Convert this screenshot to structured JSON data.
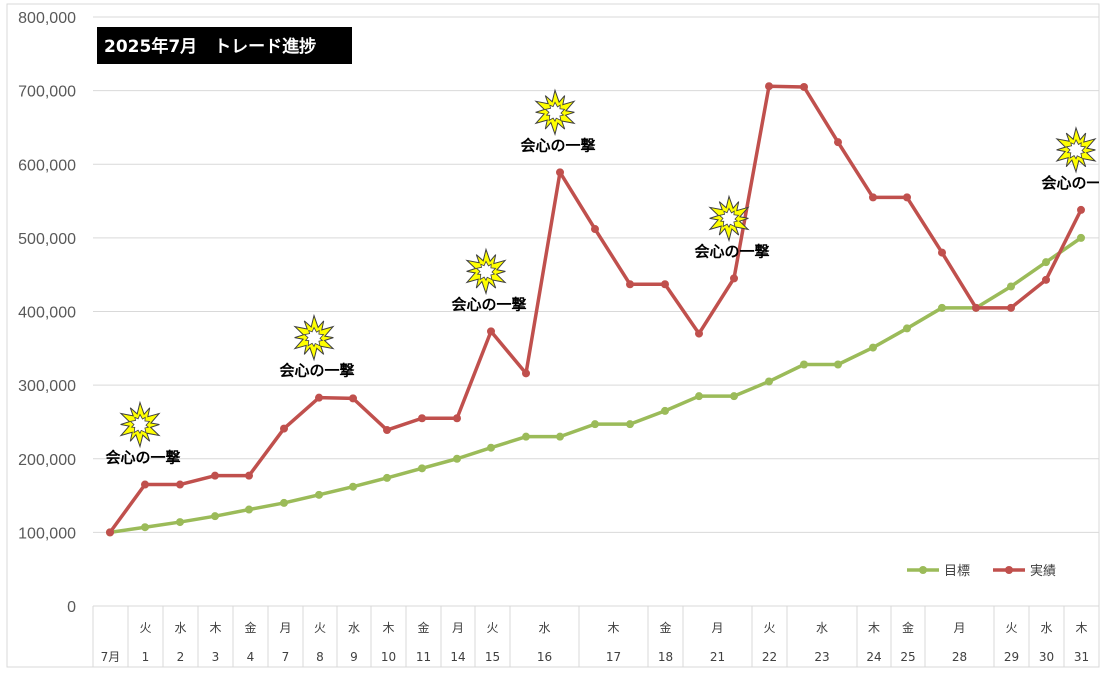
{
  "chart_data": {
    "type": "line",
    "title": "2025年7月　トレード進捗",
    "ylim": [
      0,
      800000
    ],
    "y_ticks": [
      "0",
      "100,000",
      "200,000",
      "300,000",
      "400,000",
      "500,000",
      "600,000",
      "700,000",
      "800,000"
    ],
    "grid": true,
    "legend_position": "bottom-right",
    "categories": [
      {
        "weekday": "",
        "day": "7月"
      },
      {
        "weekday": "火",
        "day": "1"
      },
      {
        "weekday": "水",
        "day": "2"
      },
      {
        "weekday": "木",
        "day": "3"
      },
      {
        "weekday": "金",
        "day": "4"
      },
      {
        "weekday": "月",
        "day": "7"
      },
      {
        "weekday": "火",
        "day": "8"
      },
      {
        "weekday": "水",
        "day": "9"
      },
      {
        "weekday": "木",
        "day": "10"
      },
      {
        "weekday": "金",
        "day": "11"
      },
      {
        "weekday": "月",
        "day": "14"
      },
      {
        "weekday": "火",
        "day": "15"
      },
      {
        "weekday": "水",
        "day": "16"
      },
      {
        "weekday": "木",
        "day": "17"
      },
      {
        "weekday": "金",
        "day": "18"
      },
      {
        "weekday": "月",
        "day": "21"
      },
      {
        "weekday": "火",
        "day": "22"
      },
      {
        "weekday": "水",
        "day": "23"
      },
      {
        "weekday": "木",
        "day": "24"
      },
      {
        "weekday": "金",
        "day": "25"
      },
      {
        "weekday": "月",
        "day": "28"
      },
      {
        "weekday": "火",
        "day": "29"
      },
      {
        "weekday": "水",
        "day": "30"
      },
      {
        "weekday": "木",
        "day": "31"
      }
    ],
    "series": [
      {
        "name": "目標",
        "color": "#9BBB59",
        "x": [
          "7月",
          "1",
          "2",
          "3",
          "4",
          "7",
          "8",
          "9",
          "10",
          "11",
          "14",
          "15",
          "16",
          "16+",
          "17",
          "17+",
          "18",
          "21",
          "21+",
          "22",
          "23",
          "23+",
          "24",
          "25",
          "28",
          "28+",
          "29",
          "30",
          "31"
        ],
        "values": [
          100000,
          107000,
          114000,
          122000,
          131000,
          140000,
          151000,
          162000,
          174000,
          187000,
          200000,
          215000,
          230000,
          230000,
          247000,
          247000,
          265000,
          285000,
          285000,
          305000,
          328000,
          328000,
          351000,
          377000,
          405000,
          405000,
          434000,
          467000,
          500000
        ]
      },
      {
        "name": "実績",
        "color": "#C0504D",
        "x": [
          "7月",
          "1",
          "2",
          "3",
          "4",
          "7",
          "8",
          "9",
          "10",
          "11",
          "14",
          "15",
          "16",
          "16+",
          "17",
          "17+",
          "18",
          "21",
          "21+",
          "22",
          "23",
          "23+",
          "24",
          "25",
          "28",
          "28+",
          "29",
          "30",
          "31"
        ],
        "values": [
          100000,
          165000,
          165000,
          177000,
          177000,
          241000,
          283000,
          282000,
          239000,
          255000,
          255000,
          373000,
          316000,
          589000,
          512000,
          437000,
          437000,
          370000,
          445000,
          706000,
          705000,
          630000,
          555000,
          555000,
          480000,
          405000,
          405000,
          443000,
          538000
        ]
      }
    ],
    "annotations": [
      {
        "text": "会心の一撃",
        "at": "1"
      },
      {
        "text": "会心の一撃",
        "at": "8"
      },
      {
        "text": "会心の一撃",
        "at": "15"
      },
      {
        "text": "会心の一撃",
        "at": "16+"
      },
      {
        "text": "会心の一撃",
        "at": "21+"
      },
      {
        "text": "会心の一撃",
        "at": "31"
      }
    ]
  }
}
